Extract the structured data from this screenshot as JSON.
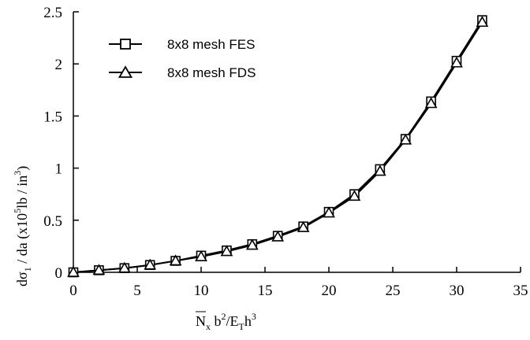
{
  "chart_data": {
    "type": "line",
    "xlabel": {
      "main_a": "N",
      "sub_a": "x",
      "main_b": " b",
      "sup_b": "2",
      "main_c": "/E",
      "sub_c": "T",
      "main_d": "h",
      "sup_d": "3"
    },
    "ylabel": {
      "prefix": "dσ",
      "sub": "1",
      "mid": " / da  (x10",
      "sup": "5",
      "suffix_a": "lb / in",
      "sup2": "3",
      "suffix_b": ")"
    },
    "xlim": [
      0,
      35
    ],
    "ylim": [
      0,
      2.5
    ],
    "xticks": [
      0,
      5,
      10,
      15,
      20,
      25,
      30,
      35
    ],
    "yticks": [
      0,
      0.5,
      1,
      1.5,
      2,
      2.5
    ],
    "xtick_labels": [
      "0",
      "5",
      "10",
      "15",
      "20",
      "25",
      "30",
      "35"
    ],
    "ytick_labels": [
      "0",
      "0.5",
      "1",
      "1.5",
      "2",
      "2.5"
    ],
    "legend_position": "top-left",
    "grid": false,
    "series": [
      {
        "name": "8x8 mesh FES",
        "marker": "square",
        "x": [
          0,
          2,
          4,
          6,
          8,
          10,
          12,
          14,
          16,
          18,
          20,
          22,
          24,
          26,
          28,
          30,
          32
        ],
        "y": [
          0,
          0.02,
          0.04,
          0.07,
          0.11,
          0.16,
          0.21,
          0.27,
          0.35,
          0.44,
          0.58,
          0.75,
          0.99,
          1.28,
          1.64,
          2.03,
          2.42
        ]
      },
      {
        "name": "8x8 mesh FDS",
        "marker": "triangle",
        "x": [
          0,
          2,
          4,
          6,
          8,
          10,
          12,
          14,
          16,
          18,
          20,
          22,
          24,
          26,
          28,
          30,
          32
        ],
        "y": [
          0,
          0.02,
          0.04,
          0.07,
          0.11,
          0.15,
          0.2,
          0.26,
          0.34,
          0.43,
          0.57,
          0.73,
          0.97,
          1.27,
          1.62,
          2.01,
          2.4
        ]
      }
    ]
  }
}
